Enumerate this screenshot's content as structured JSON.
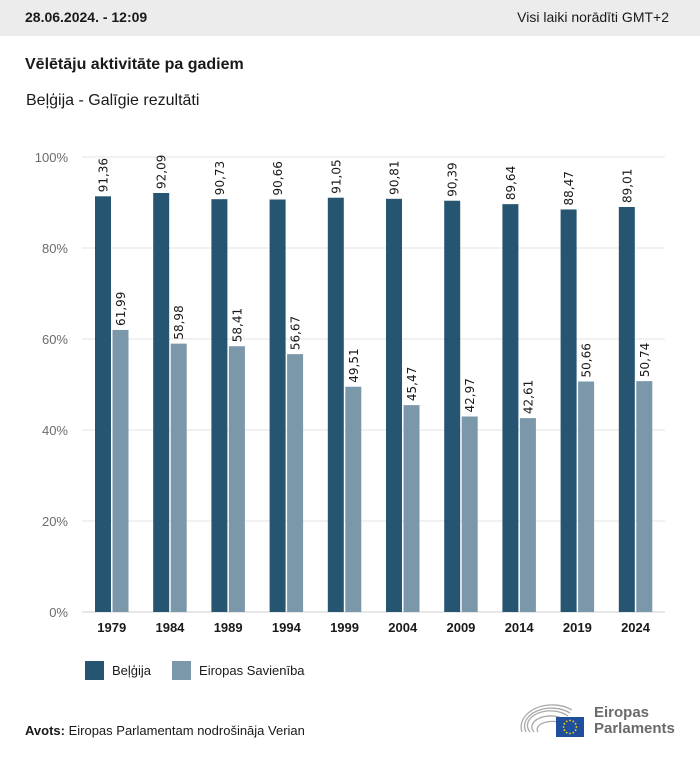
{
  "header": {
    "datetime": "28.06.2024. - 12:09",
    "timezone_note": "Visi laiki norādīti GMT+2"
  },
  "title": "Vēlētāju aktivitāte pa gadiem",
  "subtitle": "Beļģija - Galīgie rezultāti",
  "colors": {
    "belgium": "#265572",
    "eu": "#7b97aa",
    "grid": "#e3e3e3",
    "axis_text": "#6b6b6b"
  },
  "chart_data": {
    "type": "bar",
    "title": "Vēlētāju aktivitāte pa gadiem",
    "subtitle": "Beļģija - Galīgie rezultāti",
    "xlabel": "",
    "ylabel": "",
    "ylim": [
      0,
      100
    ],
    "yticks": [
      0,
      20,
      40,
      60,
      80,
      100
    ],
    "ytick_labels": [
      "0%",
      "20%",
      "40%",
      "60%",
      "80%",
      "100%"
    ],
    "grid": true,
    "categories": [
      "1979",
      "1984",
      "1989",
      "1994",
      "1999",
      "2004",
      "2009",
      "2014",
      "2019",
      "2024"
    ],
    "series": [
      {
        "name": "Beļģija",
        "color": "#265572",
        "values": [
          91.36,
          92.09,
          90.73,
          90.66,
          91.05,
          90.81,
          90.39,
          89.64,
          88.47,
          89.01
        ],
        "labels": [
          "91,36",
          "92,09",
          "90,73",
          "90,66",
          "91,05",
          "90,81",
          "90,39",
          "89,64",
          "88,47",
          "89,01"
        ]
      },
      {
        "name": "Eiropas Savienība",
        "color": "#7b97aa",
        "values": [
          61.99,
          58.98,
          58.41,
          56.67,
          49.51,
          45.47,
          42.97,
          42.61,
          50.66,
          50.74
        ],
        "labels": [
          "61,99",
          "58,98",
          "58,41",
          "56,67",
          "49,51",
          "45,47",
          "42,97",
          "42,61",
          "50,66",
          "50,74"
        ]
      }
    ],
    "legend": "bottom-left"
  },
  "legend": {
    "items": [
      {
        "label": "Beļģija",
        "color": "#265572"
      },
      {
        "label": "Eiropas Savienība",
        "color": "#7b97aa"
      }
    ]
  },
  "footer": {
    "source_label": "Avots:",
    "source_text": " Eiropas Parlamentam nodrošināja Verian",
    "logo_line1": "Eiropas",
    "logo_line2": "Parlaments",
    "logo_icon": "european-parliament-logo-icon"
  }
}
